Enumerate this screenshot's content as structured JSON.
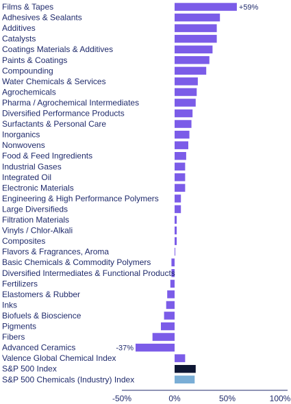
{
  "chart_data": {
    "type": "bar",
    "orientation": "horizontal",
    "title": "",
    "xlabel": "",
    "ylabel": "",
    "xlim": [
      -50,
      100
    ],
    "x_ticks": [
      "-50%",
      "0%",
      "50%",
      "100%"
    ],
    "x_tick_values": [
      -50,
      0,
      50,
      100
    ],
    "grid": false,
    "legend": "none",
    "colors": {
      "default": "#7b5ce8",
      "S&P 500 Index": "#0d1633",
      "S&P 500 Chemicals (Industry) Index": "#7aaed6"
    },
    "categories": [
      "Films & Tapes",
      "Adhesives & Sealants",
      "Additives",
      "Catalysts",
      "Coatings Materials & Additives",
      "Paints & Coatings",
      "Compounding",
      "Water Chemicals & Services",
      "Agrochemicals",
      "Pharma / Agrochemical Intermediates",
      "Diversified Performance Products",
      "Surfactants & Personal Care",
      "Inorganics",
      "Nonwovens",
      "Food & Feed Ingredients",
      "Industrial Gases",
      "Integrated Oil",
      "Electronic Materials",
      "Engineering & High Performance Polymers",
      "Large Diversifieds",
      "Filtration Materials",
      "Vinyls / Chlor-Alkali",
      "Composites",
      "Flavors & Fragrances, Aroma",
      "Basic Chemicals & Commodity Polymers",
      "Diversified Intermediates & Functional Products",
      "Fertilizers",
      "Elastomers & Rubber",
      "Inks",
      "Biofuels & Bioscience",
      "Pigments",
      "Fibers",
      "Advanced Ceramics",
      "Valence Global Chemical Index",
      "S&P 500 Index",
      "S&P 500 Chemicals (Industry) Index"
    ],
    "values": [
      59,
      43,
      40,
      40,
      36,
      33,
      30,
      22,
      21,
      20,
      17,
      16,
      14,
      13,
      11,
      10,
      10,
      10,
      6,
      6,
      2,
      2,
      2,
      0.5,
      -3,
      -3,
      -4,
      -7,
      -8,
      -10,
      -13,
      -21,
      -37,
      10,
      20,
      19
    ],
    "data_labels": [
      {
        "index": 0,
        "text": "+59%"
      },
      {
        "index": 32,
        "text": "-37%"
      }
    ]
  }
}
